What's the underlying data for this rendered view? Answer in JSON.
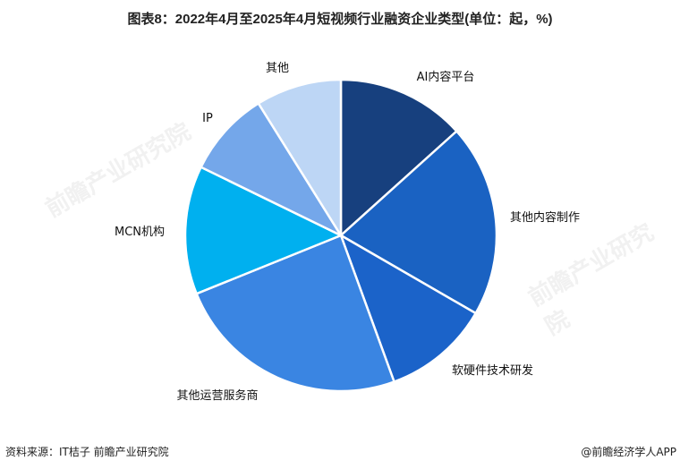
{
  "chart_data": {
    "type": "pie",
    "title": "图表8：2022年4月至2025年4月短视频行业融资企业类型(单位：起，%)",
    "categories": [
      "AI内容平台",
      "其他内容制作",
      "软硬件技术研发",
      "其他运营服务商",
      "MCN机构",
      "IP",
      "其他"
    ],
    "values": [
      6,
      9,
      5,
      11,
      6,
      4,
      4
    ],
    "colors": [
      "#17407e",
      "#1a62c2",
      "#1b63c9",
      "#3a85e2",
      "#00b0ef",
      "#74a7ea",
      "#bdd6f5"
    ],
    "start_angle": "12 o'clock",
    "direction": "clockwise",
    "legend": "none"
  },
  "footer": {
    "source": "资料来源：IT桔子 前瞻产业研究院",
    "brand": "@前瞻经济学人APP"
  },
  "watermark": "前瞻产业研究院"
}
